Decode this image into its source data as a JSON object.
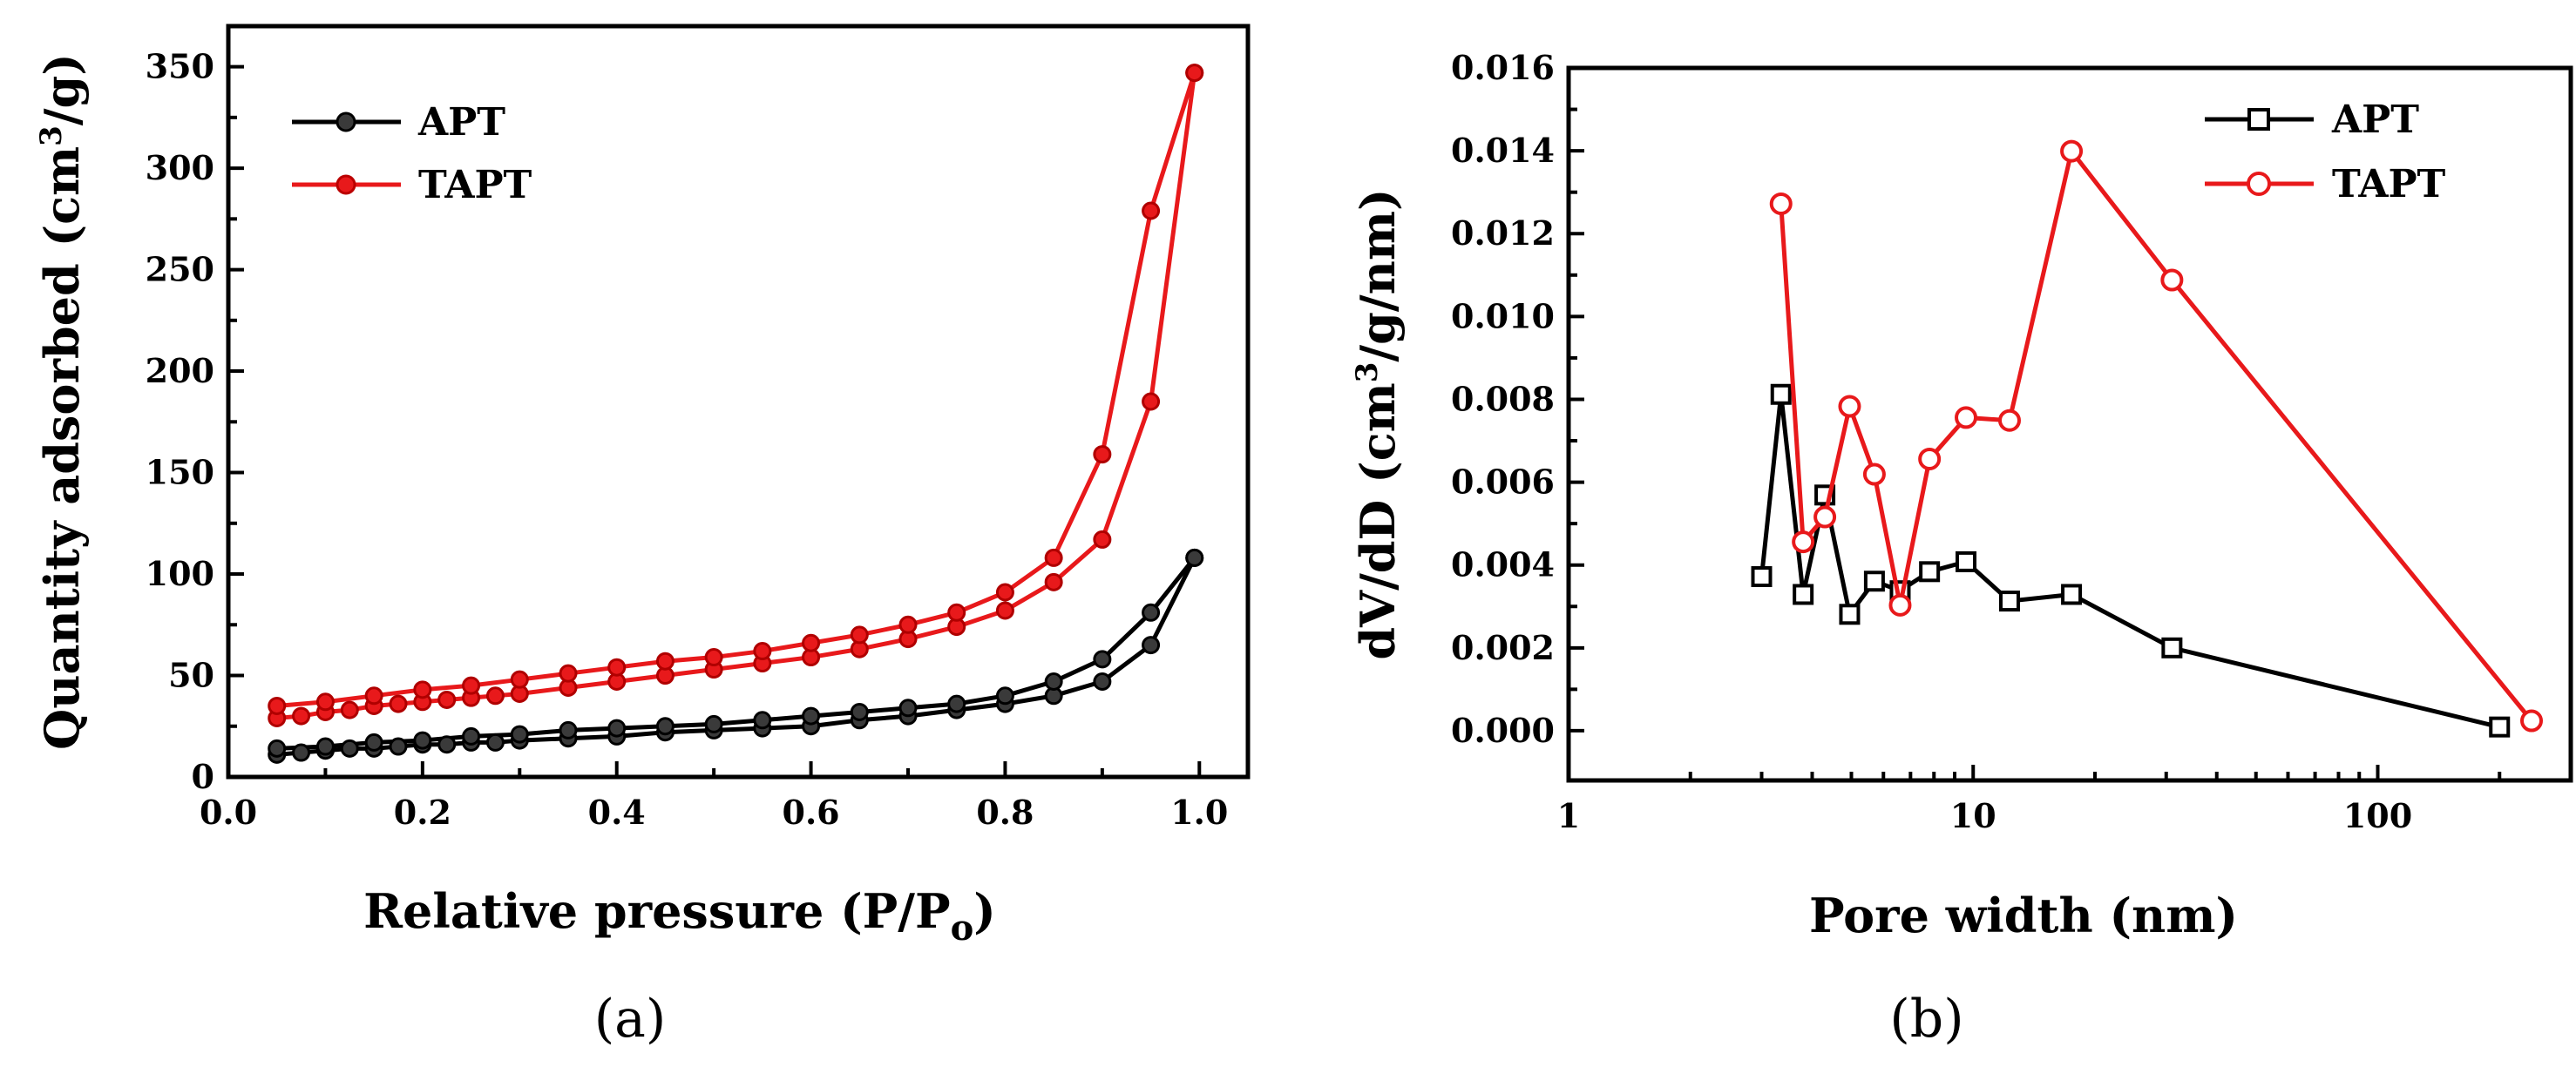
{
  "chart_data": [
    {
      "type": "line",
      "panel": "(a)",
      "title": "",
      "xlabel": "Relative pressure (P/Po)",
      "ylabel": "Quantity adsorbed (cm3/g)",
      "xlim": [
        0.0,
        1.05
      ],
      "ylim": [
        0,
        370
      ],
      "xticks": [
        "0.0",
        "0.2",
        "0.4",
        "0.6",
        "0.8",
        "1.0"
      ],
      "yticks": [
        "0",
        "50",
        "100",
        "150",
        "200",
        "250",
        "300",
        "350"
      ],
      "legend": "top-left",
      "series": [
        {
          "name": "APT",
          "color": "#000000",
          "marker": "filled-circle",
          "adsorption": {
            "x": [
              0.05,
              0.075,
              0.1,
              0.125,
              0.15,
              0.175,
              0.2,
              0.225,
              0.25,
              0.275,
              0.3,
              0.35,
              0.4,
              0.45,
              0.5,
              0.55,
              0.6,
              0.65,
              0.7,
              0.75,
              0.8,
              0.85,
              0.9,
              0.95,
              0.995
            ],
            "y": [
              11,
              12,
              13,
              14,
              14,
              15,
              16,
              16,
              17,
              17,
              18,
              19,
              20,
              22,
              23,
              24,
              25,
              28,
              30,
              33,
              36,
              40,
              47,
              65,
              108
            ]
          },
          "desorption": {
            "x": [
              0.995,
              0.95,
              0.9,
              0.85,
              0.8,
              0.75,
              0.7,
              0.65,
              0.6,
              0.55,
              0.5,
              0.45,
              0.4,
              0.35,
              0.3,
              0.25,
              0.2,
              0.15,
              0.1,
              0.05
            ],
            "y": [
              108,
              81,
              58,
              47,
              40,
              36,
              34,
              32,
              30,
              28,
              26,
              25,
              24,
              23,
              21,
              20,
              18,
              17,
              15,
              14
            ]
          }
        },
        {
          "name": "TAPT",
          "color": "#e8191b",
          "marker": "filled-circle",
          "adsorption": {
            "x": [
              0.05,
              0.075,
              0.1,
              0.125,
              0.15,
              0.175,
              0.2,
              0.225,
              0.25,
              0.275,
              0.3,
              0.35,
              0.4,
              0.45,
              0.5,
              0.55,
              0.6,
              0.65,
              0.7,
              0.75,
              0.8,
              0.85,
              0.9,
              0.95,
              0.995
            ],
            "y": [
              29,
              30,
              32,
              33,
              35,
              36,
              37,
              38,
              39,
              40,
              41,
              44,
              47,
              50,
              53,
              56,
              59,
              63,
              68,
              74,
              82,
              96,
              117,
              185,
              347
            ]
          },
          "desorption": {
            "x": [
              0.995,
              0.95,
              0.9,
              0.85,
              0.8,
              0.75,
              0.7,
              0.65,
              0.6,
              0.55,
              0.5,
              0.45,
              0.4,
              0.35,
              0.3,
              0.25,
              0.2,
              0.15,
              0.1,
              0.05
            ],
            "y": [
              347,
              279,
              159,
              108,
              91,
              81,
              75,
              70,
              66,
              62,
              59,
              57,
              54,
              51,
              48,
              45,
              43,
              40,
              37,
              35
            ]
          }
        }
      ]
    },
    {
      "type": "line",
      "panel": "(b)",
      "title": "",
      "xlabel": "Pore width (nm)",
      "ylabel": "dV/dD (cm3/g/nm)",
      "xscale": "log",
      "xlim": [
        1,
        300
      ],
      "ylim": [
        -0.0012,
        0.016
      ],
      "xticks": [
        "1",
        "10",
        "100"
      ],
      "yticks": [
        "0.000",
        "0.002",
        "0.004",
        "0.006",
        "0.008",
        "0.010",
        "0.012",
        "0.014",
        "0.016"
      ],
      "legend": "top-right",
      "series": [
        {
          "name": "APT",
          "color": "#000000",
          "marker": "open-square",
          "x": [
            3.0,
            3.35,
            3.8,
            4.3,
            4.95,
            5.7,
            6.6,
            7.8,
            9.6,
            12.3,
            17.5,
            31.0,
            200.0
          ],
          "y": [
            0.00372,
            0.00812,
            0.00329,
            0.00569,
            0.00281,
            0.00361,
            0.00338,
            0.00384,
            0.00408,
            0.00313,
            0.00329,
            0.002,
            9e-05
          ]
        },
        {
          "name": "TAPT",
          "color": "#e8191b",
          "marker": "open-circle",
          "x": [
            3.35,
            3.8,
            4.3,
            4.95,
            5.7,
            6.6,
            7.8,
            9.6,
            12.3,
            17.5,
            31.0,
            240.0
          ],
          "y": [
            0.01272,
            0.00456,
            0.00516,
            0.00783,
            0.00619,
            0.00303,
            0.00656,
            0.00756,
            0.00749,
            0.01399,
            0.01088,
            0.00024
          ]
        }
      ]
    }
  ],
  "figure": {
    "caption_a": "(a)",
    "caption_b": "(b)",
    "panel_a": {
      "ylabel_main": "Quantity adsorbed (cm",
      "ylabel_sup": "3",
      "ylabel_end": "/g)",
      "xlabel_main": "Relative pressure (P/P",
      "xlabel_sub": "o",
      "xlabel_end": ")"
    },
    "panel_b": {
      "ylabel_main": "dV/dD (cm",
      "ylabel_sup": "3",
      "ylabel_end": "/g/nm)",
      "xlabel": "Pore width (nm)"
    }
  }
}
